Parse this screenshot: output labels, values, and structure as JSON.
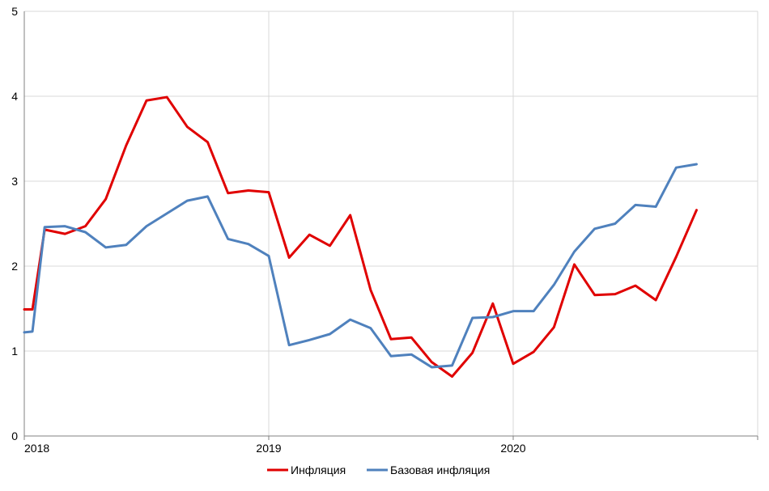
{
  "chart_data": {
    "type": "line",
    "title": "",
    "xlabel": "",
    "ylabel": "",
    "ylim": [
      0,
      5
    ],
    "yticks": [
      "0",
      "1",
      "2",
      "3",
      "4",
      "5"
    ],
    "xlim": [
      0,
      36
    ],
    "xticks": [
      {
        "label": "2018",
        "x": 0
      },
      {
        "label": "2019",
        "x": 12
      },
      {
        "label": "2020",
        "x": 24
      }
    ],
    "grid": true,
    "legend_position": "bottom",
    "series": [
      {
        "name": "Инфляция",
        "color": "#e00000",
        "points": [
          [
            0,
            1.49
          ],
          [
            0.4,
            1.49
          ],
          [
            1,
            2.43
          ],
          [
            2,
            2.38
          ],
          [
            3,
            2.47
          ],
          [
            4,
            2.79
          ],
          [
            5,
            3.42
          ],
          [
            6,
            3.95
          ],
          [
            7,
            3.99
          ],
          [
            8,
            3.64
          ],
          [
            9,
            3.46
          ],
          [
            10,
            2.86
          ],
          [
            11,
            2.89
          ],
          [
            12,
            2.87
          ],
          [
            13,
            2.1
          ],
          [
            14,
            2.37
          ],
          [
            15,
            2.24
          ],
          [
            16,
            2.6
          ],
          [
            17,
            1.72
          ],
          [
            18,
            1.14
          ],
          [
            19,
            1.16
          ],
          [
            20,
            0.87
          ],
          [
            21,
            0.7
          ],
          [
            22,
            0.98
          ],
          [
            23,
            1.56
          ],
          [
            24,
            0.85
          ],
          [
            25,
            0.99
          ],
          [
            26,
            1.28
          ],
          [
            27,
            2.02
          ],
          [
            28,
            1.66
          ],
          [
            29,
            1.67
          ],
          [
            30,
            1.77
          ],
          [
            31,
            1.6
          ],
          [
            32,
            2.11
          ],
          [
            33,
            2.66
          ]
        ]
      },
      {
        "name": "Базовая инфляция",
        "color": "#4f81bd",
        "points": [
          [
            0,
            1.22
          ],
          [
            0.4,
            1.23
          ],
          [
            1,
            2.46
          ],
          [
            2,
            2.47
          ],
          [
            3,
            2.4
          ],
          [
            4,
            2.22
          ],
          [
            5,
            2.25
          ],
          [
            6,
            2.47
          ],
          [
            7,
            2.62
          ],
          [
            8,
            2.77
          ],
          [
            9,
            2.82
          ],
          [
            10,
            2.32
          ],
          [
            11,
            2.26
          ],
          [
            12,
            2.12
          ],
          [
            13,
            1.07
          ],
          [
            14,
            1.13
          ],
          [
            15,
            1.2
          ],
          [
            16,
            1.37
          ],
          [
            17,
            1.27
          ],
          [
            18,
            0.94
          ],
          [
            19,
            0.96
          ],
          [
            20,
            0.81
          ],
          [
            21,
            0.83
          ],
          [
            22,
            1.39
          ],
          [
            23,
            1.4
          ],
          [
            24,
            1.47
          ],
          [
            25,
            1.47
          ],
          [
            26,
            1.78
          ],
          [
            27,
            2.17
          ],
          [
            28,
            2.44
          ],
          [
            29,
            2.5
          ],
          [
            30,
            2.72
          ],
          [
            31,
            2.7
          ],
          [
            32,
            3.16
          ],
          [
            33,
            3.2
          ]
        ]
      }
    ]
  }
}
